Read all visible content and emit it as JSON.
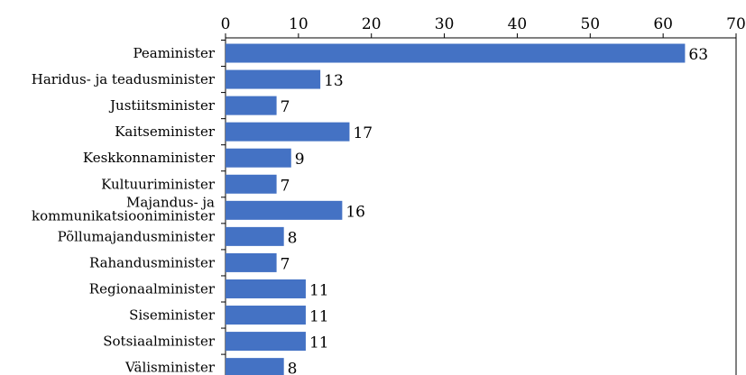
{
  "chart_data": {
    "type": "bar",
    "orientation": "horizontal",
    "x_axis_position": "top",
    "xlim": [
      0,
      70
    ],
    "x_ticks": [
      0,
      10,
      20,
      30,
      40,
      50,
      60,
      70
    ],
    "grid": false,
    "bar_color": "#4472C4",
    "title": "",
    "xlabel": "",
    "ylabel": "",
    "categories": [
      "Peaminister",
      "Haridus- ja teadusminister",
      "Justiitsminister",
      "Kaitseminister",
      "Keskkonnaminister",
      "Kultuuriminister",
      "Majandus- ja kommunikatsiooniminister",
      "Põllumajandusminister",
      "Rahandusminister",
      "Regionaalminister",
      "Siseminister",
      "Sotsiaalminister",
      "Välisminister"
    ],
    "values": [
      63,
      13,
      7,
      17,
      9,
      7,
      16,
      8,
      7,
      11,
      11,
      11,
      8
    ]
  }
}
